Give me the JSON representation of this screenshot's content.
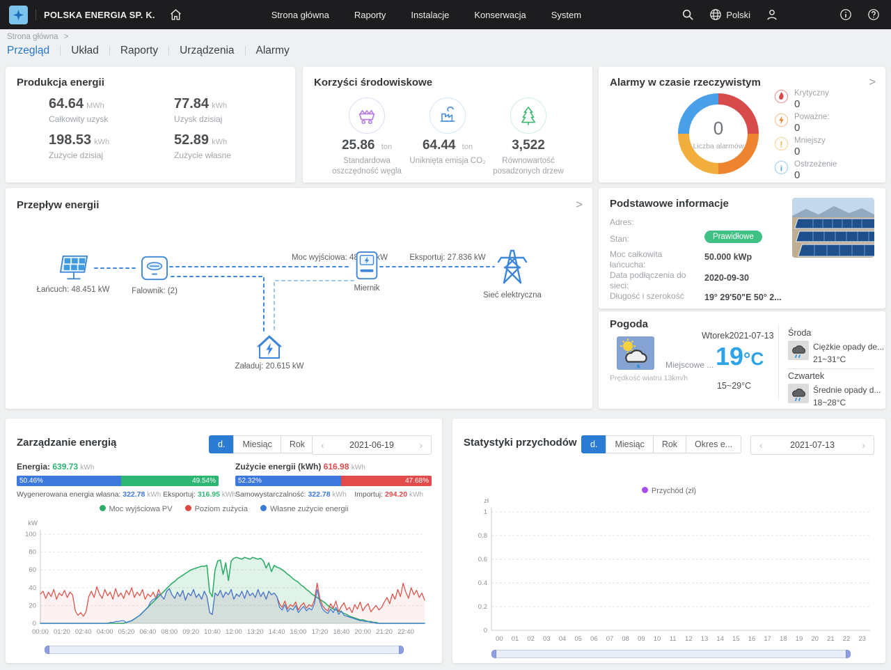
{
  "colors": {
    "accent_blue": "#2878c8",
    "bar_blue": "#3d78dd",
    "bar_green": "#2db673",
    "bar_red": "#e14b4b",
    "badge_green": "#3fc186",
    "temp_blue": "#2da4e8"
  },
  "icons": {
    "chevron_left": "‹",
    "chevron_right": "›",
    "breadcrumb_sep": ">",
    "card_arrow": ">"
  },
  "navbar": {
    "company": "POLSKA ENERGIA SP. K.",
    "menu": [
      "Strona główna",
      "Raporty",
      "Instalacje",
      "Konserwacja",
      "System"
    ],
    "language": "Polski"
  },
  "breadcrumb": {
    "text": "Strona główna"
  },
  "tabs": [
    "Przegląd",
    "Układ",
    "Raporty",
    "Urządzenia",
    "Alarmy"
  ],
  "production": {
    "title": "Produkcja energii",
    "stats": [
      {
        "value": "64.64",
        "unit": "MWh",
        "label": "Całkowity uzysk"
      },
      {
        "value": "77.84",
        "unit": "kWh",
        "label": "Uzysk dzisiaj"
      },
      {
        "value": "198.53",
        "unit": "kWh",
        "label": "Zużycie dzisiaj"
      },
      {
        "value": "52.89",
        "unit": "kWh",
        "label": "Zużycie własne"
      }
    ]
  },
  "environment": {
    "title": "Korzyści środowiskowe",
    "items": [
      {
        "icon": "coal-cart-icon",
        "value": "25.86",
        "unit": "ton",
        "label": "Standardowa oszczędność węgla"
      },
      {
        "icon": "factory-icon",
        "value": "64.44",
        "unit": "ton",
        "label": "Uniknięta emisja CO₂"
      },
      {
        "icon": "tree-icon",
        "value": "3,522",
        "unit": "",
        "label": "Równowartość posadzonych drzew"
      }
    ]
  },
  "alarms": {
    "title": "Alarmy w czasie rzeczywistym",
    "center_value": "0",
    "center_label": "Liczba alarmów",
    "items": [
      {
        "label": "Krytyczny",
        "value": "0"
      },
      {
        "label": "Poważne:",
        "value": "0"
      },
      {
        "label": "Mniejszy",
        "value": "0"
      },
      {
        "label": "Ostrzeżenie",
        "value": "0"
      }
    ]
  },
  "flow": {
    "title": "Przepływ energii",
    "chain_label": "Łańcuch: 48.451 kW",
    "inverter_label": "Falownik: (2)",
    "output_label": "Moc wyjściowa: 48.451 kW",
    "meter_label": "Miernik",
    "export_label": "Eksportuj: 27.836 kW",
    "grid_label": "Sieć elektryczna",
    "load_label": "Załaduj: 20.615 kW"
  },
  "info": {
    "title": "Podstawowe informacje",
    "rows": [
      {
        "label": "Adres:",
        "value": ""
      },
      {
        "label": "Stan:",
        "value": "Prawidłowe"
      },
      {
        "label": "Moc całkowita łańcucha:",
        "value": "50.000 kWp"
      },
      {
        "label": "Data podłączenia do sieci:",
        "value": "2020-09-30"
      },
      {
        "label": "Długość i szerokość",
        "value": "19° 29'50\"E   50° 2..."
      }
    ]
  },
  "weather": {
    "title": "Pogoda",
    "today": {
      "date_line": "Wtorek2021-07-13",
      "condition": "Miejscowe ...",
      "temp": "19",
      "temp_unit": "°C",
      "range": "15~29°C",
      "wind": "Prędkość wiatru 13km/h"
    },
    "forecast": [
      {
        "day": "Środa",
        "condition": "Ciężkie opady de...",
        "range": "21~31°C"
      },
      {
        "day": "Czwartek",
        "condition": "Średnie opady d...",
        "range": "18~28°C"
      }
    ]
  },
  "energy_mgmt": {
    "title": "Zarządzanie energią",
    "tabs": [
      "d.",
      "Miesiąc",
      "Rok"
    ],
    "active_tab": "d.",
    "date": "2021-06-19",
    "generation": {
      "label": "Energia:",
      "value": "639.73",
      "unit": "kWh",
      "left_pct": "50.46%",
      "right_pct": "49.54%",
      "sub_left_label": "Wygenerowana energia własna:",
      "sub_left_value": "322.78",
      "sub_left_unit": "kWh",
      "sub_right_label": "Eksportuj:",
      "sub_right_value": "316.95",
      "sub_right_unit": "kWh"
    },
    "consumption": {
      "label": "Zużycie energii (kWh)",
      "value": "616.98",
      "unit": "kWh",
      "left_pct": "52.32%",
      "right_pct": "47.68%",
      "sub_left_label": "Samowystarczalność:",
      "sub_left_value": "322.78",
      "sub_left_unit": "kWh",
      "sub_right_label": "Importuj:",
      "sub_right_value": "294.20",
      "sub_right_unit": "kWh"
    }
  },
  "revenue": {
    "title": "Statystyki przychodów",
    "tabs": [
      "d.",
      "Miesiąc",
      "Rok",
      "Okres e..."
    ],
    "active_tab": "d.",
    "date": "2021-07-13"
  },
  "chart_data": [
    {
      "type": "donut",
      "title": "Alarmy w czasie rzeczywistym",
      "center_value": 0,
      "center_label": "Liczba alarmów",
      "segments": [
        {
          "label": "Krytyczny",
          "value": 0,
          "color": "#d84b4b"
        },
        {
          "label": "Poważne:",
          "value": 0,
          "color": "#ef8430"
        },
        {
          "label": "Mniejszy",
          "value": 0,
          "color": "#f2ae3c"
        },
        {
          "label": "Ostrzeżenie",
          "value": 0,
          "color": "#4aa0e8"
        }
      ],
      "note": "four equal quarter segments, all counts zero"
    },
    {
      "type": "line",
      "title": "Zarządzanie energią",
      "ylabel": "kW",
      "ylim": [
        0,
        100
      ],
      "yticks": [
        0,
        20,
        40,
        60,
        80,
        100
      ],
      "x_step_minutes": 10,
      "x_labels": [
        "00:00",
        "01:20",
        "02:40",
        "04:00",
        "05:20",
        "06:40",
        "08:00",
        "09:20",
        "10:40",
        "12:00",
        "13:20",
        "14:40",
        "16:00",
        "17:20",
        "18:40",
        "20:00",
        "21:20",
        "22:40"
      ],
      "legend_position": "top-center",
      "grid": "dashed-horizontal",
      "series": [
        {
          "name": "Moc wyjściowa PV",
          "color": "#2fae68",
          "fill": "rgba(63,182,112,0.16)",
          "width": 1.6,
          "values": [
            0,
            0,
            0,
            0,
            0,
            0,
            0,
            0,
            0,
            0,
            0,
            0,
            0,
            0,
            0,
            0,
            0,
            0,
            0,
            0,
            0,
            0,
            0,
            0,
            0,
            0,
            0,
            0,
            0,
            0,
            0,
            0,
            1,
            2,
            3,
            5,
            7,
            9,
            12,
            15,
            18,
            21,
            24,
            27,
            30,
            33,
            36,
            39,
            42,
            45,
            47,
            50,
            52,
            54,
            56,
            58,
            60,
            61,
            62,
            63,
            64,
            64,
            65,
            35,
            30,
            60,
            70,
            71,
            55,
            68,
            48,
            70,
            73,
            74,
            73,
            72,
            74,
            73,
            72,
            74,
            73,
            72,
            73,
            70,
            62,
            68,
            58,
            65,
            63,
            62,
            60,
            58,
            55,
            53,
            50,
            48,
            46,
            43,
            41,
            38,
            36,
            33,
            31,
            29,
            27,
            25,
            23,
            20,
            18,
            16,
            15,
            14,
            13,
            11,
            10,
            8,
            7,
            6,
            5,
            4,
            4,
            3,
            2,
            2,
            1,
            1,
            0,
            0,
            0,
            0,
            0,
            0,
            0,
            0,
            0,
            0,
            0,
            0,
            0,
            0,
            0,
            0,
            0,
            0
          ]
        },
        {
          "name": "Poziom zużycia",
          "color": "#dc4a41",
          "fill": "rgba(220,74,65,0.07)",
          "width": 1.2,
          "values": [
            33,
            36,
            28,
            35,
            30,
            38,
            27,
            34,
            31,
            37,
            29,
            35,
            32,
            14,
            9,
            12,
            8,
            13,
            30,
            36,
            29,
            41,
            33,
            28,
            38,
            31,
            35,
            27,
            39,
            30,
            34,
            28,
            37,
            32,
            40,
            29,
            35,
            31,
            38,
            27,
            33,
            30,
            35,
            28,
            38,
            31,
            27,
            36,
            39,
            32,
            28,
            35,
            30,
            37,
            26,
            34,
            31,
            38,
            29,
            33,
            27,
            36,
            30,
            12,
            10,
            34,
            31,
            37,
            29,
            35,
            32,
            38,
            27,
            33,
            30,
            36,
            28,
            37,
            31,
            34,
            29,
            38,
            30,
            35,
            27,
            36,
            32,
            34,
            30,
            22,
            18,
            25,
            16,
            21,
            19,
            24,
            15,
            20,
            23,
            17,
            21,
            19,
            26,
            45,
            28,
            20,
            16,
            14,
            22,
            17,
            25,
            13,
            19,
            23,
            15,
            18,
            12,
            21,
            16,
            24,
            14,
            19,
            22,
            13,
            17,
            20,
            15,
            18,
            24,
            29,
            22,
            33,
            27,
            38,
            30,
            45,
            35,
            28,
            40,
            32,
            37,
            29,
            34,
            26
          ]
        },
        {
          "name": "Własne zużycie energii",
          "color": "#3a7bd5",
          "fill": "rgba(58,123,213,0.07)",
          "width": 1.2,
          "values": [
            0,
            0,
            0,
            0,
            0,
            0,
            0,
            0,
            0,
            0,
            0,
            0,
            0,
            0,
            0,
            0,
            0,
            0,
            0,
            0,
            0,
            0,
            0,
            0,
            0,
            0,
            1,
            1,
            2,
            2,
            3,
            3,
            1,
            2,
            3,
            5,
            7,
            9,
            12,
            15,
            18,
            24,
            27,
            28,
            33,
            31,
            27,
            36,
            39,
            32,
            28,
            35,
            30,
            37,
            26,
            34,
            31,
            38,
            29,
            33,
            27,
            36,
            30,
            12,
            10,
            34,
            31,
            37,
            29,
            35,
            32,
            38,
            27,
            33,
            30,
            36,
            28,
            37,
            31,
            34,
            29,
            38,
            30,
            35,
            27,
            36,
            32,
            34,
            30,
            18,
            15,
            21,
            13,
            17,
            15,
            20,
            12,
            16,
            19,
            14,
            17,
            15,
            22,
            38,
            24,
            16,
            13,
            11,
            16,
            12,
            18,
            10,
            14,
            9,
            8,
            7,
            6,
            5,
            4,
            3,
            3,
            2,
            2,
            1,
            1,
            0,
            0,
            0,
            0,
            0,
            0,
            0,
            0,
            0,
            0,
            0,
            0,
            0,
            0,
            0,
            0,
            0,
            0,
            0
          ]
        }
      ]
    },
    {
      "type": "line",
      "title": "Statystyki przychodów",
      "ylabel": "zł",
      "ylim": [
        0,
        1
      ],
      "yticks": [
        0,
        0.2,
        0.4,
        0.6,
        0.8,
        1
      ],
      "x_labels": [
        "00",
        "01",
        "02",
        "03",
        "04",
        "05",
        "06",
        "07",
        "08",
        "09",
        "10",
        "11",
        "12",
        "13",
        "14",
        "15",
        "16",
        "17",
        "18",
        "19",
        "20",
        "21",
        "22",
        "23"
      ],
      "legend_position": "top-center",
      "grid": "dashed-horizontal",
      "series": [
        {
          "name": "Przychód (zł)",
          "color": "#a64ce8",
          "values": []
        }
      ]
    }
  ]
}
